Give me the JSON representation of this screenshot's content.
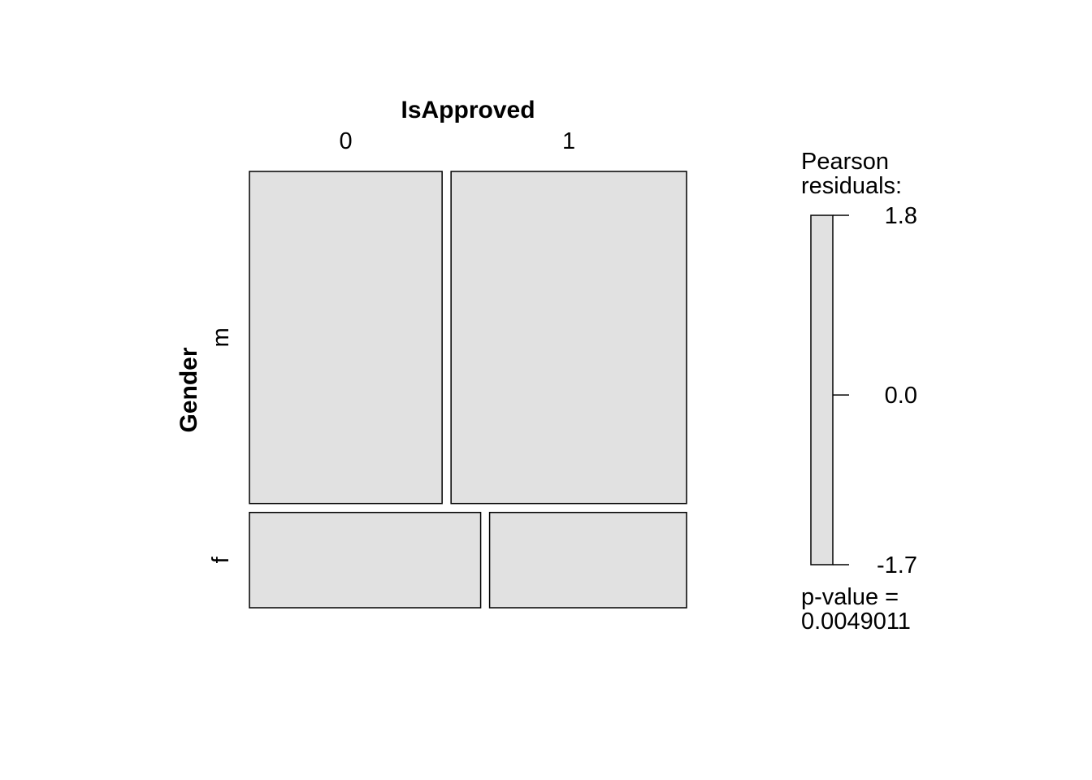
{
  "chart_data": {
    "type": "mosaic",
    "col_variable": "IsApproved",
    "row_variable": "Gender",
    "col_levels": [
      "0",
      "1"
    ],
    "row_levels": [
      "m",
      "f"
    ],
    "row_proportions": {
      "m": 0.777,
      "f": 0.223
    },
    "col_proportions_within_row": {
      "m": {
        "0": 0.45,
        "1": 0.55
      },
      "f": {
        "0": 0.54,
        "1": 0.46
      }
    },
    "cells": [
      {
        "row": "m",
        "col": "0"
      },
      {
        "row": "m",
        "col": "1"
      },
      {
        "row": "f",
        "col": "0"
      },
      {
        "row": "f",
        "col": "1"
      }
    ],
    "tile_fill": "#e1e1e1",
    "legend": {
      "title_line1": "Pearson",
      "title_line2": "residuals:",
      "ticks": [
        "1.8",
        "0.0",
        "-1.7"
      ],
      "tick_values": [
        1.8,
        0.0,
        -1.7
      ],
      "range": [
        -1.7,
        1.8
      ],
      "pvalue_line1": "p-value =",
      "pvalue_line2": "0.0049011"
    }
  }
}
